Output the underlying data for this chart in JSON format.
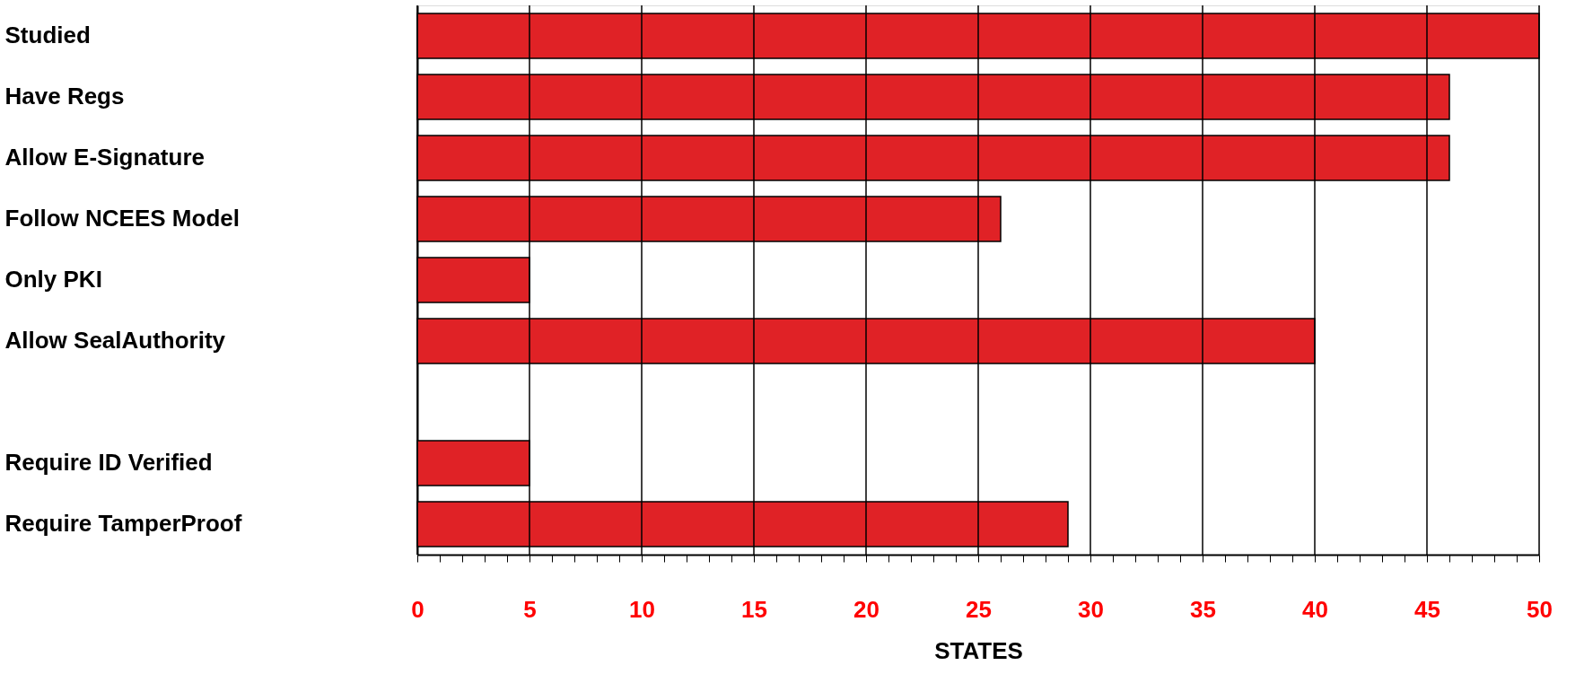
{
  "chart_data": {
    "type": "bar",
    "orientation": "horizontal",
    "xlabel": "STATES",
    "categories": [
      "Studied",
      "Have Regs",
      "Allow E-Signature",
      "Follow NCEES Model",
      "Only PKI",
      "Allow SealAuthority",
      null,
      "Require ID Verified",
      "Require TamperProof"
    ],
    "series": [
      {
        "color": "#e02226",
        "values": [
          50,
          46,
          46,
          26,
          5,
          40,
          null,
          5,
          29
        ]
      }
    ],
    "xlim": [
      0,
      50
    ],
    "xticks": [
      0,
      {
        "value": 1,
        "label": null
      },
      {
        "value": 2,
        "label": null
      },
      {
        "value": 3,
        "label": null
      },
      {
        "value": 4,
        "label": null
      },
      5,
      {
        "value": 6,
        "label": null
      },
      {
        "value": 7,
        "label": null
      },
      {
        "value": 8,
        "label": null
      },
      {
        "value": 9,
        "label": null
      },
      10,
      {
        "value": 11,
        "label": null
      },
      {
        "value": 12,
        "label": null
      },
      {
        "value": 13,
        "label": null
      },
      {
        "value": 14,
        "label": null
      },
      15,
      {
        "value": 16,
        "label": null
      },
      {
        "value": 17,
        "label": null
      },
      {
        "value": 18,
        "label": null
      },
      {
        "value": 19,
        "label": null
      },
      20,
      {
        "value": 21,
        "label": null
      },
      {
        "value": 22,
        "label": null
      },
      {
        "value": 23,
        "label": null
      },
      {
        "value": 24,
        "label": null
      },
      25,
      {
        "value": 26,
        "label": null
      },
      {
        "value": 27,
        "label": null
      },
      {
        "value": 28,
        "label": null
      },
      {
        "value": 29,
        "label": null
      },
      30,
      {
        "value": 31,
        "label": null
      },
      {
        "value": 32,
        "label": null
      },
      {
        "value": 33,
        "label": null
      },
      {
        "value": 34,
        "label": null
      },
      35,
      {
        "value": 36,
        "label": null
      },
      {
        "value": 37,
        "label": null
      },
      {
        "value": 38,
        "label": null
      },
      {
        "value": 39,
        "label": null
      },
      40,
      {
        "value": 41,
        "label": null
      },
      {
        "value": 42,
        "label": null
      },
      {
        "value": 43,
        "label": null
      },
      {
        "value": 44,
        "label": null
      },
      45,
      {
        "value": 46,
        "label": null
      },
      {
        "value": 47,
        "label": null
      },
      {
        "value": 48,
        "label": null
      },
      {
        "value": 49,
        "label": null
      },
      50
    ],
    "grid": "x"
  }
}
